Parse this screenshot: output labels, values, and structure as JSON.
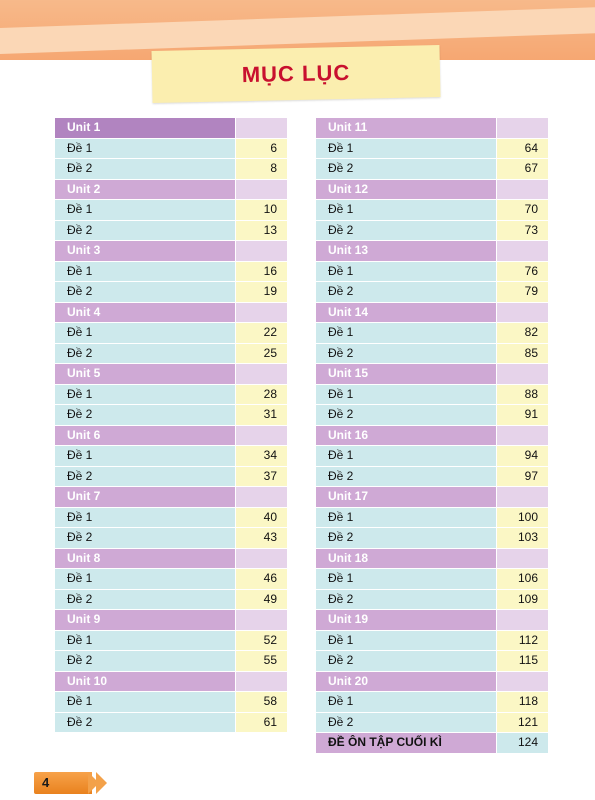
{
  "title": "MỤC LỤC",
  "page_number": "4",
  "left_column": [
    {
      "unit": "Unit 1",
      "entries": [
        {
          "label": "Đề 1",
          "page": "6"
        },
        {
          "label": "Đề 2",
          "page": "8"
        }
      ]
    },
    {
      "unit": "Unit 2",
      "entries": [
        {
          "label": "Đề 1",
          "page": "10"
        },
        {
          "label": "Đề 2",
          "page": "13"
        }
      ]
    },
    {
      "unit": "Unit 3",
      "entries": [
        {
          "label": "Đề 1",
          "page": "16"
        },
        {
          "label": "Đề 2",
          "page": "19"
        }
      ]
    },
    {
      "unit": "Unit 4",
      "entries": [
        {
          "label": "Đề 1",
          "page": "22"
        },
        {
          "label": "Đề 2",
          "page": "25"
        }
      ]
    },
    {
      "unit": "Unit 5",
      "entries": [
        {
          "label": "Đề 1",
          "page": "28"
        },
        {
          "label": "Đề 2",
          "page": "31"
        }
      ]
    },
    {
      "unit": "Unit 6",
      "entries": [
        {
          "label": "Đề 1",
          "page": "34"
        },
        {
          "label": "Đề 2",
          "page": "37"
        }
      ]
    },
    {
      "unit": "Unit 7",
      "entries": [
        {
          "label": "Đề 1",
          "page": "40"
        },
        {
          "label": "Đề 2",
          "page": "43"
        }
      ]
    },
    {
      "unit": "Unit 8",
      "entries": [
        {
          "label": "Đề 1",
          "page": "46"
        },
        {
          "label": "Đề 2",
          "page": "49"
        }
      ]
    },
    {
      "unit": "Unit 9",
      "entries": [
        {
          "label": "Đề 1",
          "page": "52"
        },
        {
          "label": "Đề 2",
          "page": "55"
        }
      ]
    },
    {
      "unit": "Unit 10",
      "entries": [
        {
          "label": "Đề 1",
          "page": "58"
        },
        {
          "label": "Đề 2",
          "page": "61"
        }
      ]
    }
  ],
  "right_column": [
    {
      "unit": "Unit 11",
      "entries": [
        {
          "label": "Đề 1",
          "page": "64"
        },
        {
          "label": "Đề 2",
          "page": "67"
        }
      ]
    },
    {
      "unit": "Unit 12",
      "entries": [
        {
          "label": "Đề 1",
          "page": "70"
        },
        {
          "label": "Đề 2",
          "page": "73"
        }
      ]
    },
    {
      "unit": "Unit 13",
      "entries": [
        {
          "label": "Đề 1",
          "page": "76"
        },
        {
          "label": "Đề 2",
          "page": "79"
        }
      ]
    },
    {
      "unit": "Unit 14",
      "entries": [
        {
          "label": "Đề 1",
          "page": "82"
        },
        {
          "label": "Đề 2",
          "page": "85"
        }
      ]
    },
    {
      "unit": "Unit 15",
      "entries": [
        {
          "label": "Đề 1",
          "page": "88"
        },
        {
          "label": "Đề 2",
          "page": "91"
        }
      ]
    },
    {
      "unit": "Unit 16",
      "entries": [
        {
          "label": "Đề 1",
          "page": "94"
        },
        {
          "label": "Đề 2",
          "page": "97"
        }
      ]
    },
    {
      "unit": "Unit 17",
      "entries": [
        {
          "label": "Đề 1",
          "page": "100"
        },
        {
          "label": "Đề 2",
          "page": "103"
        }
      ]
    },
    {
      "unit": "Unit 18",
      "entries": [
        {
          "label": "Đề 1",
          "page": "106"
        },
        {
          "label": "Đề 2",
          "page": "109"
        }
      ]
    },
    {
      "unit": "Unit 19",
      "entries": [
        {
          "label": "Đề 1",
          "page": "112"
        },
        {
          "label": "Đề 2",
          "page": "115"
        }
      ]
    },
    {
      "unit": "Unit 20",
      "entries": [
        {
          "label": "Đề 1",
          "page": "118"
        },
        {
          "label": "Đề 2",
          "page": "121"
        }
      ]
    }
  ],
  "final_entry": {
    "label": "ĐỀ ÔN TẬP CUỐI KÌ",
    "page": "124"
  },
  "colors": {
    "title": "#c8102e",
    "unit_header": "#cfa9d5",
    "entry_label": "#cde9ec",
    "entry_page": "#fbf7c5",
    "page_tab": "#f39a3c"
  }
}
